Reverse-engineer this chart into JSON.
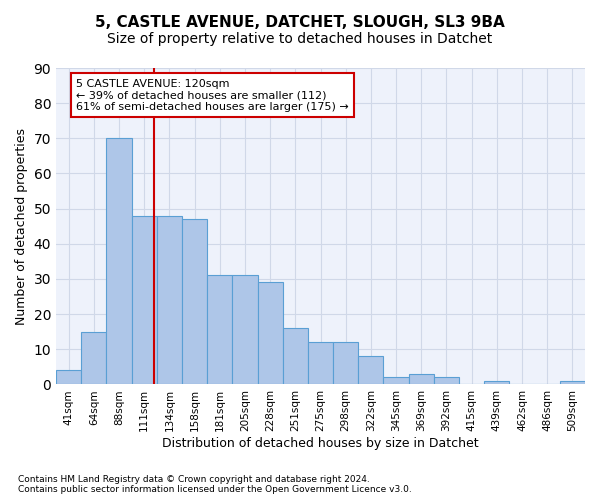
{
  "title_line1": "5, CASTLE AVENUE, DATCHET, SLOUGH, SL3 9BA",
  "title_line2": "Size of property relative to detached houses in Datchet",
  "xlabel": "Distribution of detached houses by size in Datchet",
  "ylabel": "Number of detached properties",
  "footnote1": "Contains HM Land Registry data © Crown copyright and database right 2024.",
  "footnote2": "Contains public sector information licensed under the Open Government Licence v3.0.",
  "bar_labels": [
    "41sqm",
    "64sqm",
    "88sqm",
    "111sqm",
    "134sqm",
    "158sqm",
    "181sqm",
    "205sqm",
    "228sqm",
    "251sqm",
    "275sqm",
    "298sqm",
    "322sqm",
    "345sqm",
    "369sqm",
    "392sqm",
    "415sqm",
    "439sqm",
    "462sqm",
    "486sqm",
    "509sqm"
  ],
  "bar_values": [
    4,
    15,
    70,
    48,
    48,
    47,
    31,
    31,
    29,
    16,
    12,
    12,
    8,
    2,
    3,
    2,
    0,
    1,
    0,
    0,
    1
  ],
  "bar_color": "#aec6e8",
  "bar_edge_color": "#5a9fd4",
  "vline_color": "#cc0000",
  "annotation_text": "5 CASTLE AVENUE: 120sqm\n← 39% of detached houses are smaller (112)\n61% of semi-detached houses are larger (175) →",
  "annotation_box_color": "#ffffff",
  "annotation_box_edge": "#cc0000",
  "ylim": [
    0,
    90
  ],
  "yticks": [
    0,
    10,
    20,
    30,
    40,
    50,
    60,
    70,
    80,
    90
  ],
  "grid_color": "#d0d8e8",
  "bg_color": "#eef2fb",
  "title_fontsize": 11,
  "subtitle_fontsize": 10
}
